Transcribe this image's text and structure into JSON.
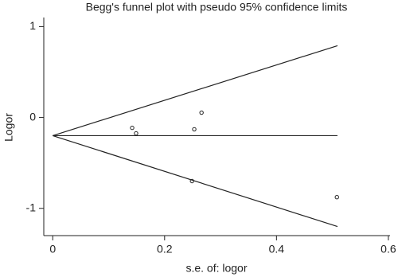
{
  "chart_data": {
    "type": "scatter",
    "title": "Begg's funnel plot with pseudo 95% confidence limits",
    "x_label": "s.e. of: logor",
    "y_label": "Logor",
    "x": [
      0.142,
      0.149,
      0.253,
      0.266,
      0.249,
      0.508
    ],
    "y": [
      -0.114,
      -0.175,
      -0.13,
      0.053,
      -0.7,
      -0.877
    ],
    "color": "#222222",
    "lines": [
      {
        "x": [
          0,
          0.509
        ],
        "y": [
          -0.2,
          0.79
        ]
      },
      {
        "x": [
          0,
          0.509
        ],
        "y": [
          -0.2,
          -0.2
        ]
      },
      {
        "x": [
          0,
          0.509
        ],
        "y": [
          -0.2,
          -1.2
        ]
      }
    ],
    "xlim": [
      -0.016,
      0.603
    ],
    "ylim": [
      -1.3,
      1.1
    ],
    "xticks": [
      0,
      0.2,
      0.4,
      0.6
    ],
    "yticks": [
      -1,
      0,
      1
    ],
    "grid": false
  }
}
